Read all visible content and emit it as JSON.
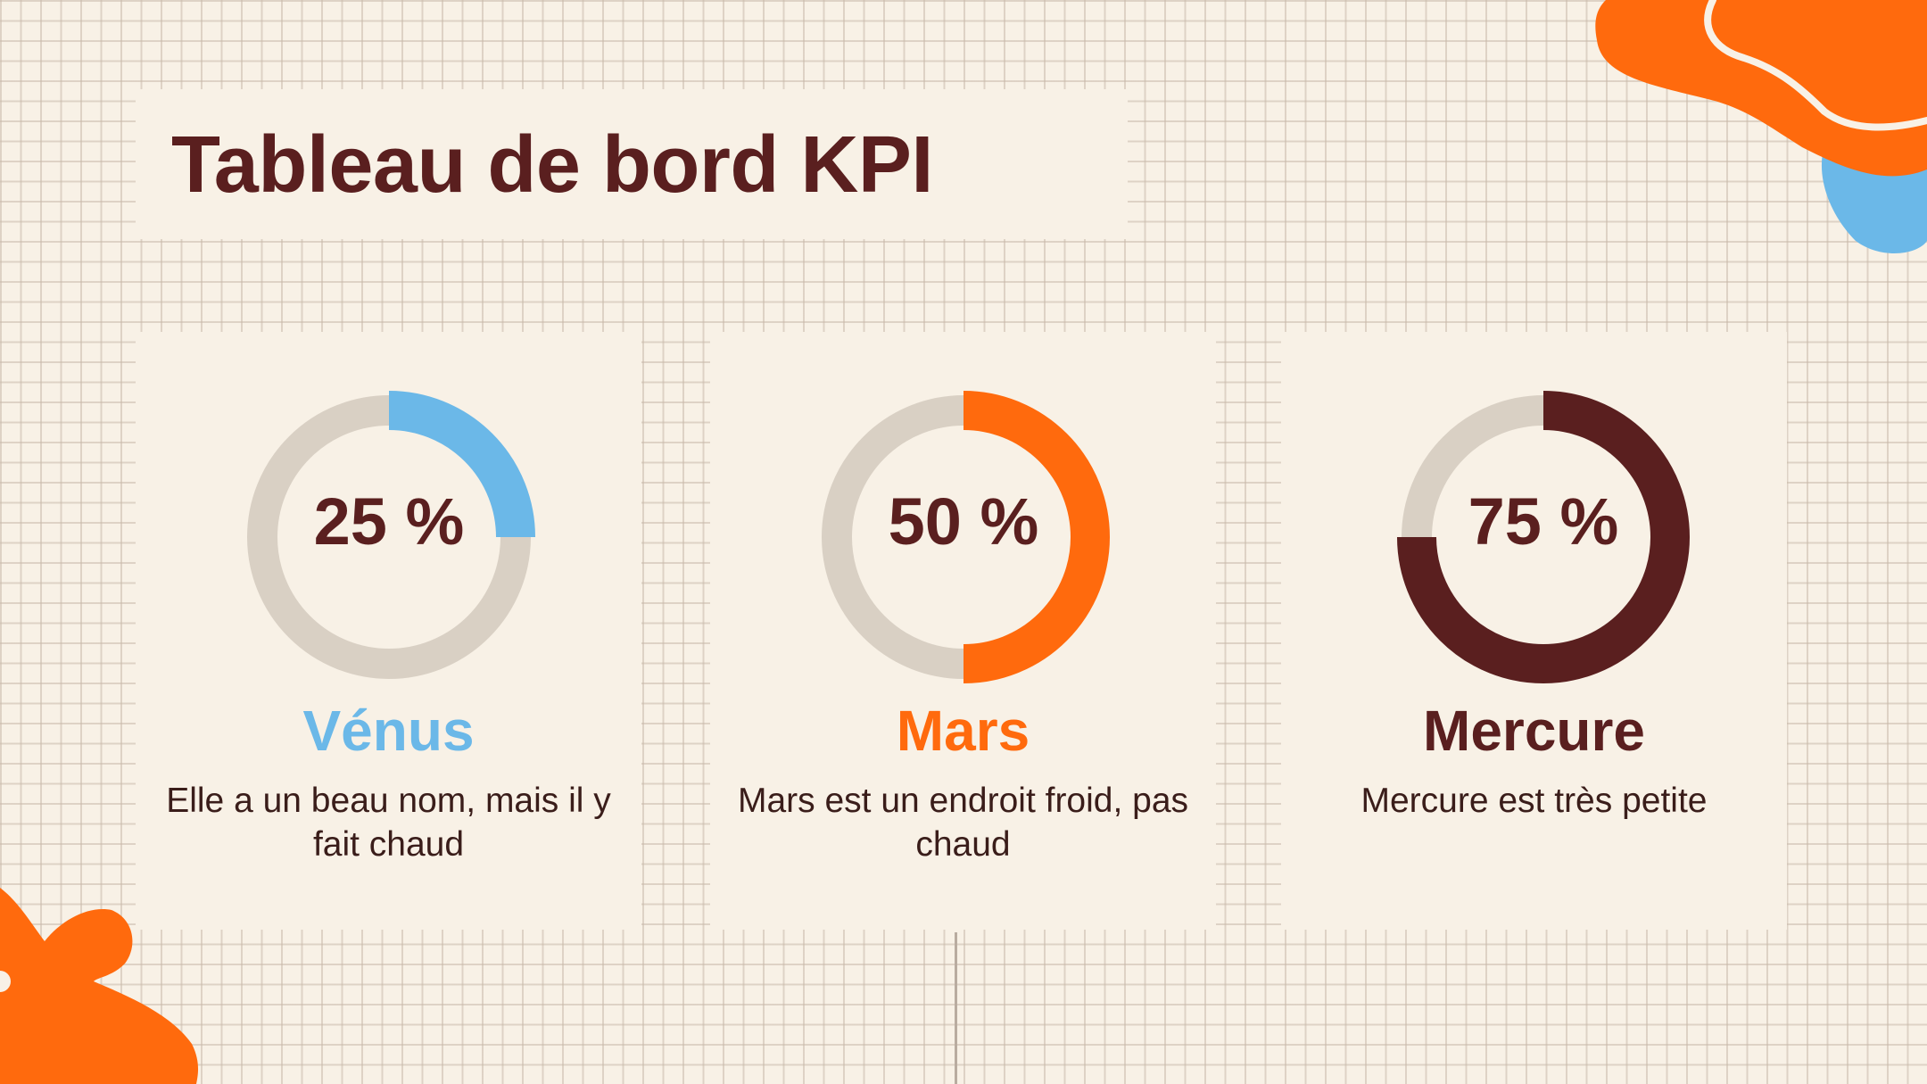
{
  "title": "Tableau de bord KPI",
  "colors": {
    "background": "#f8f1e6",
    "dark": "#5a1f1f",
    "track": "#d9d0c4",
    "orange": "#ff6a0d",
    "blue": "#6bb8e8"
  },
  "chart_data": [
    {
      "type": "pie",
      "variant": "donut",
      "value_percent": 25,
      "label": "25 %",
      "name": "Vénus",
      "description": "Elle a un beau nom, mais il y fait chaud",
      "color": "#6bb8e8"
    },
    {
      "type": "pie",
      "variant": "donut",
      "value_percent": 50,
      "label": "50 %",
      "name": "Mars",
      "description": "Mars est un endroit froid, pas chaud",
      "color": "#ff6a0d"
    },
    {
      "type": "pie",
      "variant": "donut",
      "value_percent": 75,
      "label": "75 %",
      "name": "Mercure",
      "description": "Mercure est très petite",
      "color": "#5a1f1f"
    }
  ]
}
